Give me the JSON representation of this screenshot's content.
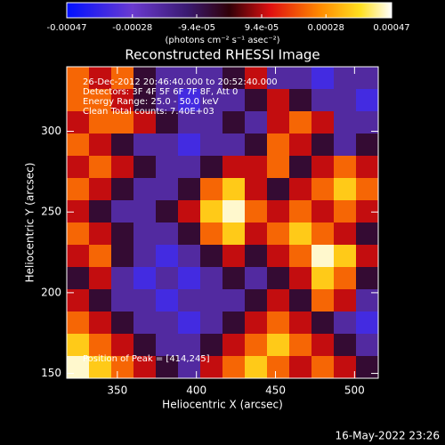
{
  "chart_data": {
    "type": "heatmap",
    "title": "Reconstructed RHESSI Image",
    "x_label": "Heliocentric X (arcsec)",
    "y_label": "Heliocentric Y (arcsec)",
    "xlim": [
      318,
      515
    ],
    "xticks": [
      350,
      400,
      450,
      500
    ],
    "ylim": [
      147,
      340
    ],
    "yticks": [
      150,
      200,
      250,
      300
    ],
    "annotations": [
      "26-Dec-2012 20:46:40.000 to 20:52:40.000",
      "Detectors: 3F 4F 5F 6F 7F 8F, Att 0",
      "Energy Range: 25.0 - 50.0 keV",
      "Clean     Total counts: 7.40E+03"
    ],
    "peak_label": "Position of Peak = [414,245]",
    "footer": "16-May-2022 23:26",
    "colorbar": {
      "label": "(photons cm⁻² s⁻¹ asec⁻²)",
      "lim": [
        -0.00047,
        0.00047
      ],
      "ticks": [
        -0.00047,
        -0.00028,
        {
          "value": -9.4e-05,
          "label": "-9.4e-05"
        },
        {
          "value": 9.4e-05,
          "label": "9.4e-05"
        },
        0.00028,
        0.00047
      ]
    },
    "colorscale": [
      {
        "value": -0.00047,
        "color": "#0010ff"
      },
      {
        "value": -0.00028,
        "color": "#6a3ad0"
      },
      {
        "value": -0.00012,
        "color": "#3a1a70"
      },
      {
        "value": 0.0,
        "color": "#300008"
      },
      {
        "value": 0.00012,
        "color": "#e01010"
      },
      {
        "value": 0.00026,
        "color": "#ff8800"
      },
      {
        "value": 0.00038,
        "color": "#ffe020"
      },
      {
        "value": 0.00047,
        "color": "#ffffff"
      }
    ],
    "z": [
      [
        0.00022,
        0.0001,
        0.00022,
        -5e-05,
        -0.0002,
        -0.0002,
        -0.0002,
        -5e-05,
        0.0001,
        -0.0002,
        -0.0002,
        -0.00035,
        -0.0002,
        -0.0002
      ],
      [
        0.00022,
        0.00022,
        0.0001,
        -5e-05,
        -0.0002,
        -0.00035,
        -0.0002,
        -0.0002,
        -5e-05,
        0.0001,
        -5e-05,
        -0.0002,
        -0.0002,
        -0.00035
      ],
      [
        0.0001,
        0.00022,
        0.00022,
        0.0001,
        -5e-05,
        -0.0002,
        -0.0002,
        -5e-05,
        -0.0002,
        0.0001,
        0.00022,
        0.0001,
        -0.0002,
        -0.0002
      ],
      [
        0.00022,
        0.0001,
        -5e-05,
        -0.0002,
        -0.0002,
        -0.00035,
        -0.0002,
        -0.0002,
        -5e-05,
        0.00022,
        0.0001,
        -5e-05,
        -0.0002,
        -5e-05
      ],
      [
        0.0001,
        0.00022,
        0.0001,
        -5e-05,
        -0.0002,
        -0.0002,
        -5e-05,
        0.0001,
        0.0001,
        0.00022,
        -5e-05,
        0.0001,
        0.00022,
        0.0001
      ],
      [
        0.00022,
        0.0001,
        -5e-05,
        -0.0002,
        -0.0002,
        -5e-05,
        0.00022,
        0.00035,
        0.0001,
        -5e-05,
        0.0001,
        0.00022,
        0.00035,
        0.00022
      ],
      [
        0.0001,
        -5e-05,
        -0.0002,
        -0.0002,
        -5e-05,
        0.0001,
        0.00035,
        0.00045,
        0.00022,
        0.0001,
        0.00022,
        0.0001,
        0.00022,
        0.0001
      ],
      [
        0.00022,
        0.0001,
        -5e-05,
        -0.0002,
        -0.0002,
        -5e-05,
        0.00022,
        0.00035,
        0.0001,
        0.00022,
        0.00035,
        0.00022,
        0.0001,
        -5e-05
      ],
      [
        0.0001,
        0.00022,
        -5e-05,
        -0.0002,
        -0.00035,
        -0.0002,
        -5e-05,
        0.0001,
        -5e-05,
        0.0001,
        0.00022,
        0.00045,
        0.00035,
        0.0001
      ],
      [
        -5e-05,
        0.0001,
        -0.0002,
        -0.00035,
        -0.0002,
        -0.00035,
        -0.0002,
        -5e-05,
        -0.0002,
        -5e-05,
        0.0001,
        0.00035,
        0.00022,
        -5e-05
      ],
      [
        0.0001,
        -5e-05,
        -0.0002,
        -0.0002,
        -0.00035,
        -0.0002,
        -0.0002,
        -0.0002,
        -5e-05,
        0.0001,
        -5e-05,
        0.00022,
        0.0001,
        -0.0002
      ],
      [
        0.00022,
        0.0001,
        -5e-05,
        -0.0002,
        -0.0002,
        -0.00035,
        -0.0002,
        -5e-05,
        0.0001,
        0.00022,
        0.0001,
        -5e-05,
        -0.0002,
        -0.00035
      ],
      [
        0.00035,
        0.00022,
        0.0001,
        -5e-05,
        -0.0002,
        -0.0002,
        -5e-05,
        0.0001,
        0.00022,
        0.00035,
        0.00022,
        0.0001,
        -5e-05,
        -0.0002
      ],
      [
        0.00045,
        0.00035,
        0.00022,
        0.0001,
        -5e-05,
        -0.0002,
        0.0001,
        0.00022,
        0.00035,
        0.00022,
        0.0001,
        0.00022,
        0.0001,
        -5e-05
      ]
    ]
  }
}
